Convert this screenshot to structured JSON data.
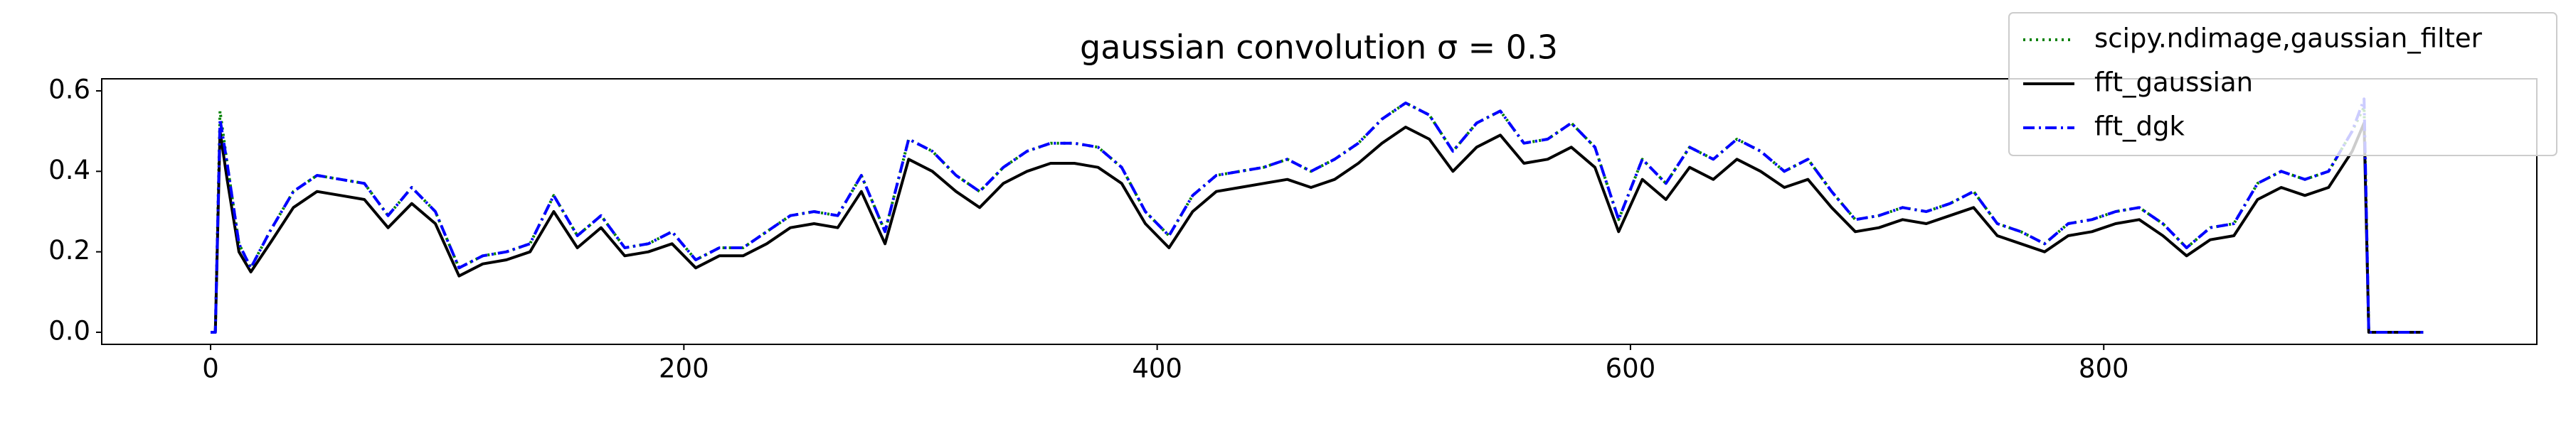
{
  "chart_data": {
    "type": "line",
    "title": "gaussian convolution σ = 0.3",
    "x": [
      0,
      2,
      4,
      7,
      12,
      17,
      25,
      35,
      45,
      55,
      65,
      75,
      85,
      95,
      105,
      115,
      125,
      135,
      145,
      155,
      165,
      175,
      185,
      195,
      205,
      215,
      225,
      235,
      245,
      255,
      265,
      275,
      285,
      295,
      305,
      315,
      325,
      335,
      345,
      355,
      365,
      375,
      385,
      395,
      405,
      415,
      425,
      435,
      445,
      455,
      465,
      475,
      485,
      495,
      505,
      515,
      525,
      535,
      545,
      555,
      565,
      575,
      585,
      595,
      605,
      615,
      625,
      635,
      645,
      655,
      665,
      675,
      685,
      695,
      705,
      715,
      725,
      735,
      745,
      755,
      765,
      775,
      785,
      795,
      805,
      815,
      825,
      835,
      845,
      855,
      865,
      875,
      885,
      895,
      905,
      910,
      912,
      935
    ],
    "series": [
      {
        "name": "scipy.ndimage,gaussian_filter",
        "color": "#008000",
        "dash": "dotted",
        "values": [
          0,
          0,
          0.55,
          0.42,
          0.22,
          0.16,
          0.25,
          0.35,
          0.39,
          0.38,
          0.37,
          0.29,
          0.36,
          0.3,
          0.16,
          0.19,
          0.2,
          0.22,
          0.34,
          0.24,
          0.29,
          0.21,
          0.22,
          0.25,
          0.18,
          0.21,
          0.21,
          0.25,
          0.29,
          0.3,
          0.29,
          0.39,
          0.25,
          0.48,
          0.45,
          0.39,
          0.35,
          0.41,
          0.45,
          0.47,
          0.47,
          0.46,
          0.41,
          0.3,
          0.24,
          0.34,
          0.39,
          0.4,
          0.41,
          0.43,
          0.4,
          0.43,
          0.47,
          0.53,
          0.57,
          0.54,
          0.45,
          0.52,
          0.55,
          0.47,
          0.48,
          0.52,
          0.46,
          0.28,
          0.43,
          0.37,
          0.46,
          0.43,
          0.48,
          0.45,
          0.4,
          0.43,
          0.35,
          0.28,
          0.29,
          0.31,
          0.3,
          0.32,
          0.35,
          0.27,
          0.25,
          0.22,
          0.27,
          0.28,
          0.3,
          0.31,
          0.27,
          0.21,
          0.26,
          0.27,
          0.37,
          0.4,
          0.38,
          0.4,
          0.5,
          0.56,
          0,
          0
        ]
      },
      {
        "name": "fft_gaussian",
        "color": "#000000",
        "dash": "solid",
        "values": [
          0,
          0,
          0.5,
          0.38,
          0.2,
          0.15,
          0.22,
          0.31,
          0.35,
          0.34,
          0.33,
          0.26,
          0.32,
          0.27,
          0.14,
          0.17,
          0.18,
          0.2,
          0.3,
          0.21,
          0.26,
          0.19,
          0.2,
          0.22,
          0.16,
          0.19,
          0.19,
          0.22,
          0.26,
          0.27,
          0.26,
          0.35,
          0.22,
          0.43,
          0.4,
          0.35,
          0.31,
          0.37,
          0.4,
          0.42,
          0.42,
          0.41,
          0.37,
          0.27,
          0.21,
          0.3,
          0.35,
          0.36,
          0.37,
          0.38,
          0.36,
          0.38,
          0.42,
          0.47,
          0.51,
          0.48,
          0.4,
          0.46,
          0.49,
          0.42,
          0.43,
          0.46,
          0.41,
          0.25,
          0.38,
          0.33,
          0.41,
          0.38,
          0.43,
          0.4,
          0.36,
          0.38,
          0.31,
          0.25,
          0.26,
          0.28,
          0.27,
          0.29,
          0.31,
          0.24,
          0.22,
          0.2,
          0.24,
          0.25,
          0.27,
          0.28,
          0.24,
          0.19,
          0.23,
          0.24,
          0.33,
          0.36,
          0.34,
          0.36,
          0.45,
          0.52,
          0,
          0
        ]
      },
      {
        "name": "fft_dgk",
        "color": "#0000ff",
        "dash": "dashdot",
        "values": [
          0,
          0,
          0.53,
          0.42,
          0.22,
          0.16,
          0.25,
          0.35,
          0.39,
          0.38,
          0.37,
          0.29,
          0.36,
          0.3,
          0.16,
          0.19,
          0.2,
          0.22,
          0.34,
          0.24,
          0.29,
          0.21,
          0.22,
          0.25,
          0.18,
          0.21,
          0.21,
          0.25,
          0.29,
          0.3,
          0.29,
          0.39,
          0.25,
          0.48,
          0.45,
          0.39,
          0.35,
          0.41,
          0.45,
          0.47,
          0.47,
          0.46,
          0.41,
          0.3,
          0.24,
          0.34,
          0.39,
          0.4,
          0.41,
          0.43,
          0.4,
          0.43,
          0.47,
          0.53,
          0.57,
          0.54,
          0.45,
          0.52,
          0.55,
          0.47,
          0.48,
          0.52,
          0.46,
          0.28,
          0.43,
          0.37,
          0.46,
          0.43,
          0.48,
          0.45,
          0.4,
          0.43,
          0.35,
          0.28,
          0.29,
          0.31,
          0.3,
          0.32,
          0.35,
          0.27,
          0.25,
          0.22,
          0.27,
          0.28,
          0.3,
          0.31,
          0.27,
          0.21,
          0.26,
          0.27,
          0.37,
          0.4,
          0.38,
          0.4,
          0.5,
          0.58,
          0,
          0
        ]
      }
    ],
    "xlim": [
      -46,
      983
    ],
    "xticks": [
      0,
      200,
      400,
      600,
      800
    ],
    "ylim": [
      -0.03,
      0.63
    ],
    "yticks": [
      {
        "value": 0,
        "label": "0.0"
      },
      0.2,
      0.4,
      0.6
    ],
    "grid": false,
    "legend": "upper right"
  }
}
